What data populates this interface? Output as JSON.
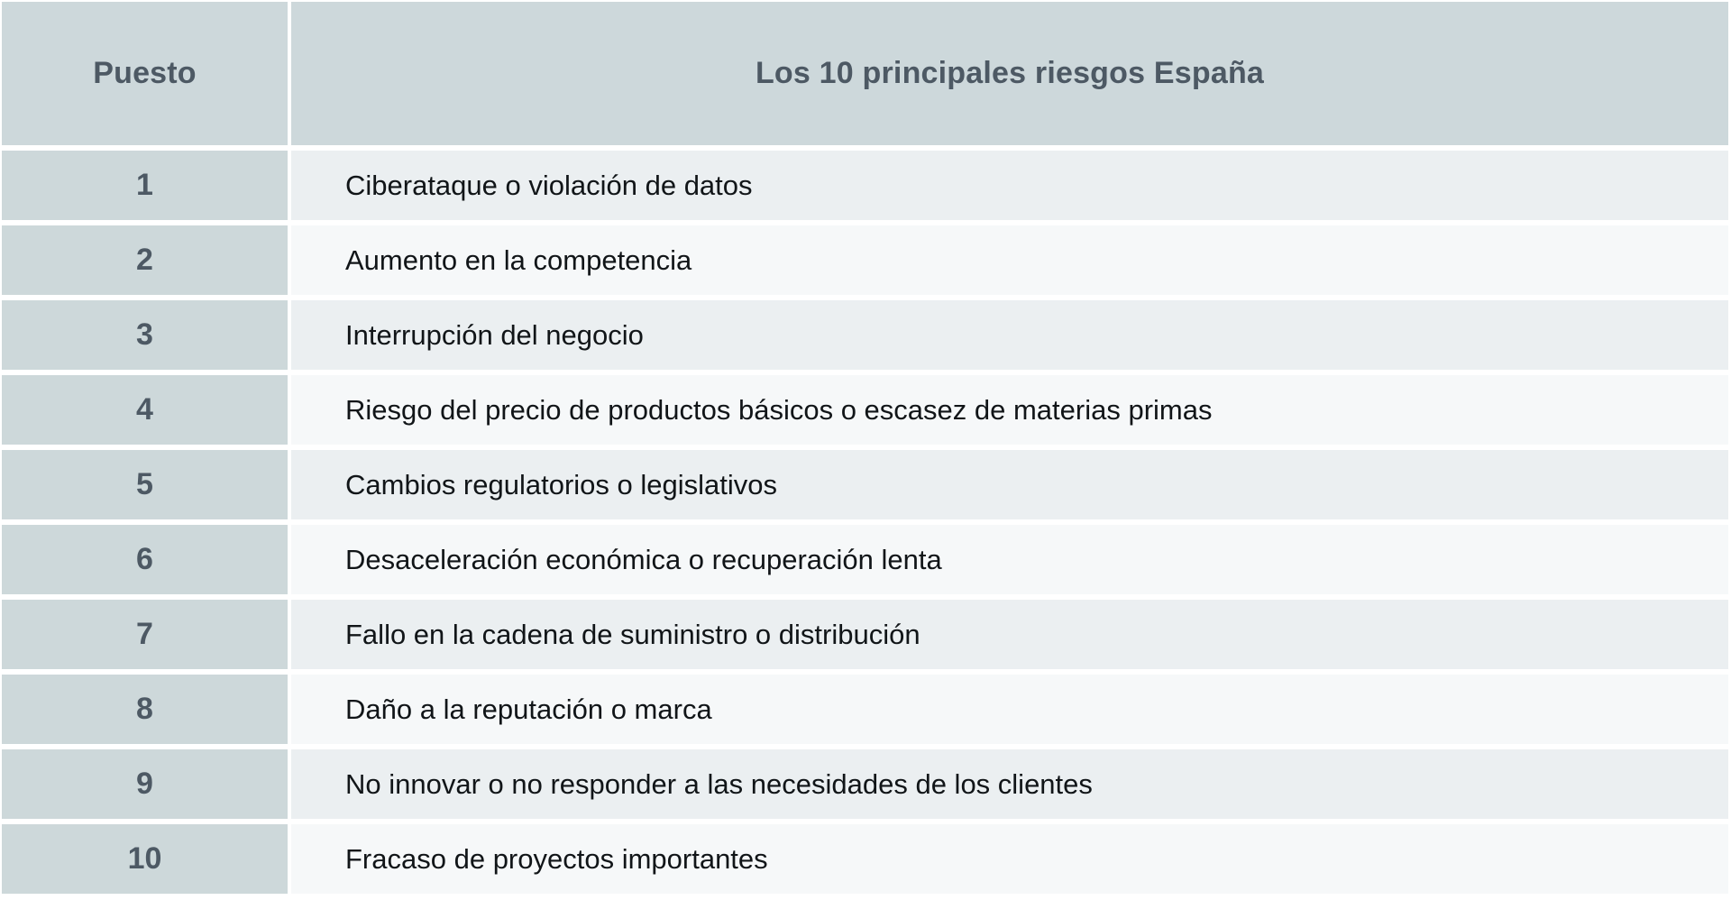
{
  "table": {
    "header": {
      "rank_label": "Puesto",
      "title": "Los 10 principales riesgos España"
    },
    "rows": [
      {
        "rank": "1",
        "risk": "Ciberataque o violación de datos"
      },
      {
        "rank": "2",
        "risk": "Aumento en la competencia"
      },
      {
        "rank": "3",
        "risk": "Interrupción del negocio"
      },
      {
        "rank": "4",
        "risk": "Riesgo del precio de productos básicos o escasez de materias primas"
      },
      {
        "rank": "5",
        "risk": "Cambios regulatorios o legislativos"
      },
      {
        "rank": "6",
        "risk": "Desaceleración económica o recuperación lenta"
      },
      {
        "rank": "7",
        "risk": "Fallo en la cadena de suministro o distribución"
      },
      {
        "rank": "8",
        "risk": "Daño a la reputación o marca"
      },
      {
        "rank": "9",
        "risk": "No innovar o no responder a las necesidades de los clientes"
      },
      {
        "rank": "10",
        "risk": "Fracaso de proyectos importantes"
      }
    ],
    "colors": {
      "header_bg": "#cdd8db",
      "rank_cell_bg": "#cdd8da",
      "row_odd_bg": "#ebeff1",
      "row_even_bg": "#f6f8f9",
      "header_text": "#4d5964",
      "body_text": "#111518",
      "gap": "#ffffff"
    }
  },
  "chart_data": {
    "type": "table",
    "title": "Los 10 principales riesgos España",
    "columns": [
      "Puesto",
      "Los 10 principales riesgos España"
    ],
    "rows": [
      [
        1,
        "Ciberataque o violación de datos"
      ],
      [
        2,
        "Aumento en la competencia"
      ],
      [
        3,
        "Interrupción del negocio"
      ],
      [
        4,
        "Riesgo del precio de productos básicos o escasez de materias primas"
      ],
      [
        5,
        "Cambios regulatorios o legislativos"
      ],
      [
        6,
        "Desaceleración económica o recuperación lenta"
      ],
      [
        7,
        "Fallo en la cadena de suministro o distribución"
      ],
      [
        8,
        "Daño a la reputación o marca"
      ],
      [
        9,
        "No innovar o no responder a las necesidades de los clientes"
      ],
      [
        10,
        "Fracaso de proyectos importantes"
      ]
    ],
    "layout": {
      "header_row": true,
      "rank_column_centered": true,
      "alternating_row_shading": true
    }
  }
}
